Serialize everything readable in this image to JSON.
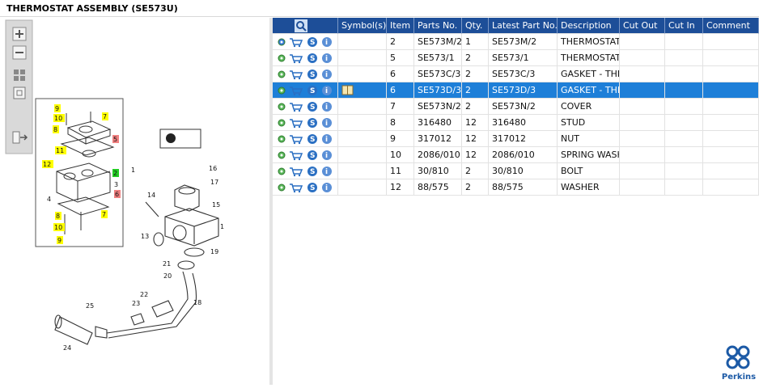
{
  "header": {
    "title": "THERMOSTAT ASSEMBLY (SE573U)"
  },
  "diagram": {
    "inset_callouts": [
      {
        "label": "9",
        "highlight": "yellow"
      },
      {
        "label": "10",
        "highlight": "yellow"
      },
      {
        "label": "8",
        "highlight": "yellow"
      },
      {
        "label": "7",
        "highlight": "yellow"
      },
      {
        "label": "5",
        "highlight": "red"
      },
      {
        "label": "11",
        "highlight": "yellow"
      },
      {
        "label": "12",
        "highlight": "yellow"
      },
      {
        "label": "2",
        "highlight": "green"
      },
      {
        "label": "3"
      },
      {
        "label": "6",
        "highlight": "red"
      },
      {
        "label": "4"
      },
      {
        "label": "8",
        "highlight": "yellow"
      },
      {
        "label": "7",
        "highlight": "yellow"
      },
      {
        "label": "10",
        "highlight": "yellow"
      },
      {
        "label": "9",
        "highlight": "yellow"
      },
      {
        "label": "1"
      }
    ],
    "callouts": [
      "16",
      "17",
      "14",
      "15",
      "1",
      "13",
      "19",
      "21",
      "20",
      "22",
      "18",
      "23",
      "25",
      "24"
    ]
  },
  "table": {
    "headers": [
      "Symbol(s)",
      "Item",
      "Parts No.",
      "Qty.",
      "Latest Part No.",
      "Description",
      "Cut Out",
      "Cut In",
      "Comment"
    ],
    "selected_row": 3,
    "rows": [
      [
        "2",
        "SE573M/2",
        "1",
        "SE573M/2",
        "THERMOSTAT I"
      ],
      [
        "5",
        "SE573/1",
        "2",
        "SE573/1",
        "THERMOSTAT"
      ],
      [
        "6",
        "SE573C/3",
        "2",
        "SE573C/3",
        "GASKET - THER"
      ],
      [
        "6",
        "SE573D/3",
        "2",
        "SE573D/3",
        "GASKET - THER"
      ],
      [
        "7",
        "SE573N/2",
        "2",
        "SE573N/2",
        "COVER"
      ],
      [
        "8",
        "316480",
        "12",
        "316480",
        "STUD"
      ],
      [
        "9",
        "317012",
        "12",
        "317012",
        "NUT"
      ],
      [
        "10",
        "2086/010",
        "12",
        "2086/010",
        "SPRING WASH"
      ],
      [
        "11",
        "30/810",
        "2",
        "30/810",
        "BOLT"
      ],
      [
        "12",
        "88/575",
        "2",
        "88/575",
        "WASHER"
      ]
    ]
  },
  "brand": "Perkins"
}
